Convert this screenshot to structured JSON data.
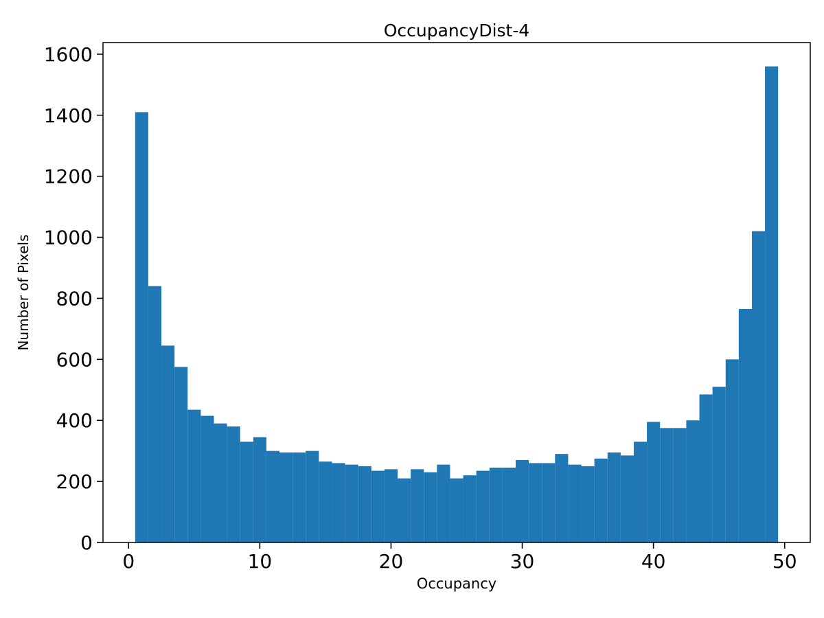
{
  "chart_data": {
    "type": "bar",
    "subtype": "histogram",
    "title": "OccupancyDist-4",
    "xlabel": "Occupancy",
    "ylabel": "Number of Pixels",
    "bar_color": "#1f77b4",
    "axis_color": "#000000",
    "background_color": "#ffffff",
    "grid": false,
    "bin_start": 0.5,
    "bin_width": 1,
    "values": [
      1410,
      840,
      645,
      575,
      435,
      415,
      390,
      380,
      330,
      345,
      300,
      295,
      295,
      300,
      265,
      260,
      255,
      250,
      235,
      240,
      210,
      240,
      230,
      255,
      210,
      220,
      235,
      245,
      245,
      270,
      260,
      260,
      290,
      255,
      250,
      275,
      295,
      285,
      330,
      395,
      375,
      375,
      400,
      485,
      510,
      600,
      765,
      1020,
      1560
    ],
    "xlim": [
      -1.95,
      51.95
    ],
    "ylim": [
      0,
      1638
    ],
    "x_ticks": [
      0,
      10,
      20,
      30,
      40,
      50
    ],
    "y_ticks": [
      0,
      200,
      400,
      600,
      800,
      1000,
      1200,
      1400,
      1600
    ]
  }
}
